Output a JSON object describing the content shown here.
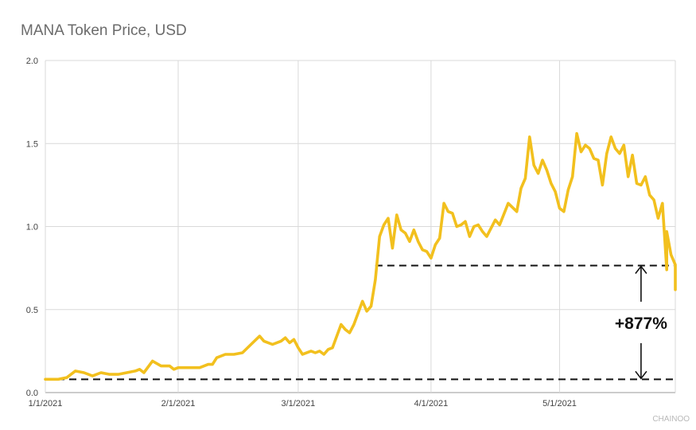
{
  "chart_data": {
    "type": "line",
    "title": "MANA Token Price, USD",
    "xlabel": "",
    "ylabel": "",
    "ylim": [
      0,
      2.0
    ],
    "yticks": [
      "0.0",
      "0.5",
      "1.0",
      "1.5",
      "2.0"
    ],
    "xticks": [
      {
        "label": "1/1/2021",
        "date": "2021-01-01"
      },
      {
        "label": "2/1/2021",
        "date": "2021-02-01"
      },
      {
        "label": "3/1/2021",
        "date": "2021-03-01"
      },
      {
        "label": "4/1/2021",
        "date": "2021-04-01"
      },
      {
        "label": "5/1/2021",
        "date": "2021-05-01"
      }
    ],
    "xlim": [
      "2021-01-01",
      "2021-05-28"
    ],
    "grid": true,
    "series": [
      {
        "color": "#F2C01E",
        "points": [
          [
            "2021-01-01",
            0.08
          ],
          [
            "2021-01-04",
            0.08
          ],
          [
            "2021-01-06",
            0.09
          ],
          [
            "2021-01-08",
            0.13
          ],
          [
            "2021-01-10",
            0.12
          ],
          [
            "2021-01-12",
            0.1
          ],
          [
            "2021-01-14",
            0.12
          ],
          [
            "2021-01-16",
            0.11
          ],
          [
            "2021-01-18",
            0.11
          ],
          [
            "2021-01-20",
            0.12
          ],
          [
            "2021-01-22",
            0.13
          ],
          [
            "2021-01-23",
            0.14
          ],
          [
            "2021-01-24",
            0.12
          ],
          [
            "2021-01-26",
            0.19
          ],
          [
            "2021-01-28",
            0.16
          ],
          [
            "2021-01-30",
            0.16
          ],
          [
            "2021-01-31",
            0.14
          ],
          [
            "2021-02-01",
            0.15
          ],
          [
            "2021-02-04",
            0.15
          ],
          [
            "2021-02-06",
            0.15
          ],
          [
            "2021-02-08",
            0.17
          ],
          [
            "2021-02-09",
            0.17
          ],
          [
            "2021-02-10",
            0.21
          ],
          [
            "2021-02-12",
            0.23
          ],
          [
            "2021-02-14",
            0.23
          ],
          [
            "2021-02-16",
            0.24
          ],
          [
            "2021-02-18",
            0.29
          ],
          [
            "2021-02-20",
            0.34
          ],
          [
            "2021-02-21",
            0.31
          ],
          [
            "2021-02-23",
            0.29
          ],
          [
            "2021-02-25",
            0.31
          ],
          [
            "2021-02-26",
            0.33
          ],
          [
            "2021-02-27",
            0.3
          ],
          [
            "2021-02-28",
            0.32
          ],
          [
            "2021-03-01",
            0.27
          ],
          [
            "2021-03-02",
            0.23
          ],
          [
            "2021-03-04",
            0.25
          ],
          [
            "2021-03-05",
            0.24
          ],
          [
            "2021-03-06",
            0.25
          ],
          [
            "2021-03-07",
            0.23
          ],
          [
            "2021-03-08",
            0.26
          ],
          [
            "2021-03-09",
            0.27
          ],
          [
            "2021-03-11",
            0.41
          ],
          [
            "2021-03-12",
            0.38
          ],
          [
            "2021-03-13",
            0.36
          ],
          [
            "2021-03-14",
            0.41
          ],
          [
            "2021-03-16",
            0.55
          ],
          [
            "2021-03-17",
            0.49
          ],
          [
            "2021-03-18",
            0.52
          ],
          [
            "2021-03-19",
            0.68
          ],
          [
            "2021-03-20",
            0.94
          ],
          [
            "2021-03-21",
            1.01
          ],
          [
            "2021-03-22",
            1.05
          ],
          [
            "2021-03-23",
            0.87
          ],
          [
            "2021-03-24",
            1.07
          ],
          [
            "2021-03-25",
            0.98
          ],
          [
            "2021-03-26",
            0.96
          ],
          [
            "2021-03-27",
            0.91
          ],
          [
            "2021-03-28",
            0.98
          ],
          [
            "2021-03-29",
            0.91
          ],
          [
            "2021-03-30",
            0.86
          ],
          [
            "2021-03-31",
            0.85
          ],
          [
            "2021-04-01",
            0.81
          ],
          [
            "2021-04-02",
            0.89
          ],
          [
            "2021-04-03",
            0.93
          ],
          [
            "2021-04-04",
            1.14
          ],
          [
            "2021-04-05",
            1.09
          ],
          [
            "2021-04-06",
            1.08
          ],
          [
            "2021-04-07",
            1.0
          ],
          [
            "2021-04-08",
            1.01
          ],
          [
            "2021-04-09",
            1.03
          ],
          [
            "2021-04-10",
            0.94
          ],
          [
            "2021-04-11",
            1.0
          ],
          [
            "2021-04-12",
            1.01
          ],
          [
            "2021-04-13",
            0.97
          ],
          [
            "2021-04-14",
            0.94
          ],
          [
            "2021-04-16",
            1.04
          ],
          [
            "2021-04-17",
            1.01
          ],
          [
            "2021-04-19",
            1.14
          ],
          [
            "2021-04-21",
            1.09
          ],
          [
            "2021-04-22",
            1.23
          ],
          [
            "2021-04-23",
            1.29
          ],
          [
            "2021-04-24",
            1.54
          ],
          [
            "2021-04-25",
            1.37
          ],
          [
            "2021-04-26",
            1.32
          ],
          [
            "2021-04-27",
            1.4
          ],
          [
            "2021-04-28",
            1.34
          ],
          [
            "2021-04-29",
            1.26
          ],
          [
            "2021-04-30",
            1.21
          ],
          [
            "2021-05-01",
            1.11
          ],
          [
            "2021-05-02",
            1.09
          ],
          [
            "2021-05-03",
            1.22
          ],
          [
            "2021-05-04",
            1.3
          ],
          [
            "2021-05-05",
            1.56
          ],
          [
            "2021-05-06",
            1.45
          ],
          [
            "2021-05-07",
            1.49
          ],
          [
            "2021-05-08",
            1.47
          ],
          [
            "2021-05-09",
            1.41
          ],
          [
            "2021-05-10",
            1.4
          ],
          [
            "2021-05-11",
            1.25
          ],
          [
            "2021-05-12",
            1.44
          ],
          [
            "2021-05-13",
            1.54
          ],
          [
            "2021-05-14",
            1.47
          ],
          [
            "2021-05-15",
            1.44
          ],
          [
            "2021-05-16",
            1.49
          ],
          [
            "2021-05-17",
            1.3
          ],
          [
            "2021-05-18",
            1.43
          ],
          [
            "2021-05-19",
            1.26
          ],
          [
            "2021-05-20",
            1.25
          ],
          [
            "2021-05-21",
            1.3
          ],
          [
            "2021-05-22",
            1.19
          ],
          [
            "2021-05-23",
            1.16
          ],
          [
            "2021-05-24",
            1.05
          ],
          [
            "2021-05-25",
            1.14
          ],
          [
            "2021-05-26",
            0.74
          ],
          [
            "2021-05-26",
            0.97
          ],
          [
            "2021-05-27",
            0.83
          ],
          [
            "2021-05-28",
            0.77
          ],
          [
            "2021-05-28",
            0.62
          ],
          [
            "2021-05-28",
            0.76
          ]
        ]
      }
    ],
    "reference_lines": [
      {
        "y": 0.08,
        "x_start": "2021-01-01",
        "x_end": "2021-05-28",
        "style": "dashed"
      },
      {
        "y": 0.765,
        "x_start": "2021-03-19",
        "x_end": "2021-05-28",
        "style": "dashed"
      }
    ],
    "annotations": [
      {
        "text": "+877%",
        "x": "2021-05-20",
        "y_from": 0.08,
        "y_to": 0.765
      }
    ]
  },
  "watermark": "CHAINOO"
}
